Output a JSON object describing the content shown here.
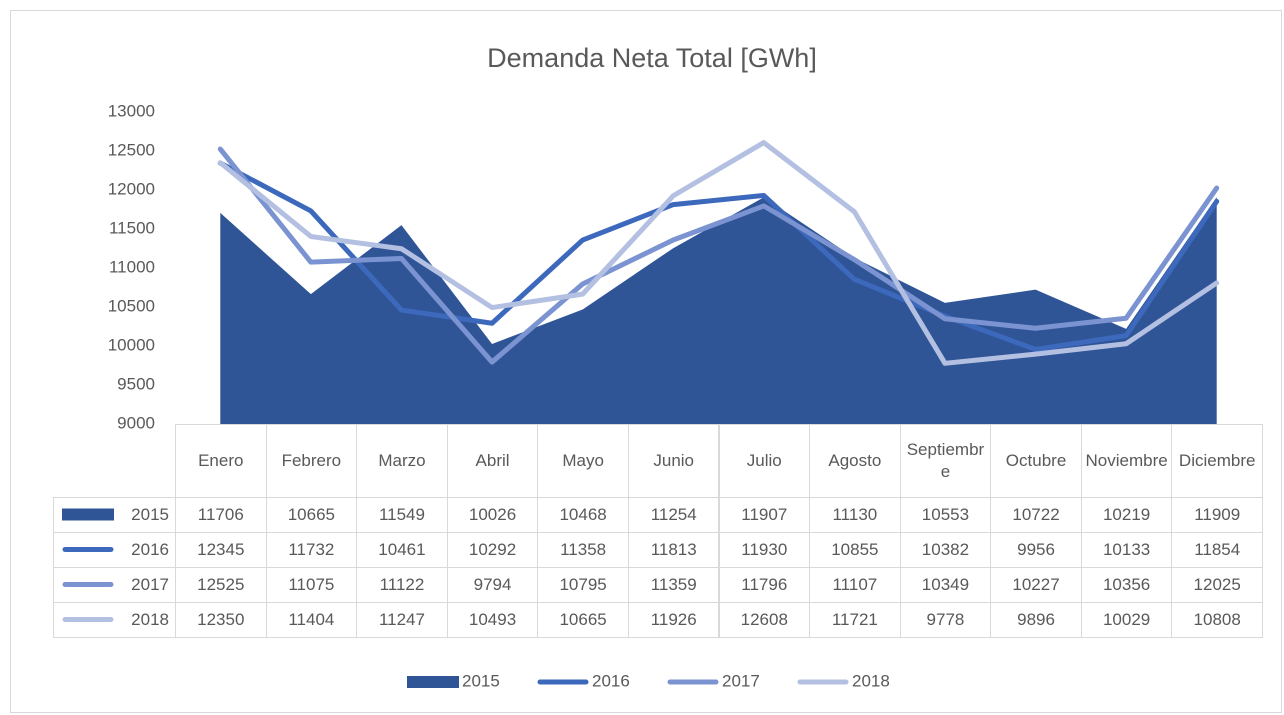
{
  "chart_data": {
    "type": "combo",
    "title": "Demanda Neta Total [GWh]",
    "categories": [
      "Enero",
      "Febrero",
      "Marzo",
      "Abril",
      "Mayo",
      "Junio",
      "Julio",
      "Agosto",
      "Septiembre",
      "Octubre",
      "Noviembre",
      "Diciembre"
    ],
    "series": [
      {
        "name": "2015",
        "type": "area",
        "color": "#2f5597",
        "values": [
          11706,
          10665,
          11549,
          10026,
          10468,
          11254,
          11907,
          11130,
          10553,
          10722,
          10219,
          11909
        ]
      },
      {
        "name": "2016",
        "type": "line",
        "color": "#3d69bd",
        "values": [
          12345,
          11732,
          10461,
          10292,
          11358,
          11813,
          11930,
          10855,
          10382,
          9956,
          10133,
          11854
        ]
      },
      {
        "name": "2017",
        "type": "line",
        "color": "#7b93d1",
        "values": [
          12525,
          11075,
          11122,
          9794,
          10795,
          11359,
          11796,
          11107,
          10349,
          10227,
          10356,
          12025
        ]
      },
      {
        "name": "2018",
        "type": "line",
        "color": "#b4c0e2",
        "values": [
          12350,
          11404,
          11247,
          10493,
          10665,
          11926,
          12608,
          11721,
          9778,
          9896,
          10029,
          10808
        ]
      }
    ],
    "ylim": [
      9000,
      13000
    ],
    "yticks": [
      9000,
      9500,
      10000,
      10500,
      11000,
      11500,
      12000,
      12500,
      13000
    ],
    "grid": false,
    "legend": "bottom",
    "data_table": true
  }
}
